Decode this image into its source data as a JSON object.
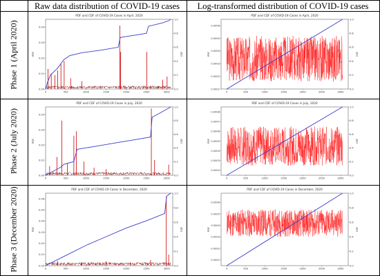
{
  "headers": {
    "col1": "Raw data distribution of COVID-19 cases",
    "col2": "Log-transformed distribution of COVID-19 cases"
  },
  "rows": [
    {
      "label": "Phase 1 (April 2020)"
    },
    {
      "label": "Phase 2 (July 2020)"
    },
    {
      "label": "Phase 3 (December 2020)"
    }
  ],
  "colors": {
    "pdf": "#cc0000",
    "pdf_dark": "#8b1a1a",
    "pdf_bright": "#ff1a1a",
    "cdf": "#3b3bcc"
  },
  "chart_data": [
    {
      "type": "line",
      "title": "PDF and CDF of COVID-19 Cases in April, 2020",
      "ylabel": "PDF",
      "y2label": "CDF",
      "x_ticks": [
        "0",
        "500",
        "1000",
        "1500",
        "2000",
        "2500",
        "3000"
      ],
      "xlim": [
        0,
        3150
      ],
      "y_ticks": [
        "0.00",
        "0.01",
        "0.02",
        "0.03",
        "0.04"
      ],
      "ylim": [
        0,
        0.045
      ],
      "y2_ticks": [
        "0.0",
        "0.2",
        "0.4",
        "0.6",
        "0.8",
        "1.0"
      ],
      "y2lim": [
        0,
        1.0
      ],
      "pdf_spikes": [
        [
          60,
          0.013
        ],
        [
          140,
          0.01
        ],
        [
          230,
          0.009
        ],
        [
          300,
          0.012
        ],
        [
          380,
          0.016
        ],
        [
          460,
          0.018
        ],
        [
          620,
          0.007
        ],
        [
          900,
          0.005
        ],
        [
          1840,
          0.041
        ],
        [
          1860,
          0.024
        ],
        [
          2510,
          0.024
        ],
        [
          2900,
          0.006
        ],
        [
          3010,
          0.008
        ]
      ],
      "cdf": [
        [
          0,
          0.0
        ],
        [
          50,
          0.1
        ],
        [
          120,
          0.2
        ],
        [
          300,
          0.3
        ],
        [
          450,
          0.42
        ],
        [
          600,
          0.48
        ],
        [
          900,
          0.52
        ],
        [
          1400,
          0.56
        ],
        [
          1800,
          0.6
        ],
        [
          1850,
          0.74
        ],
        [
          2300,
          0.78
        ],
        [
          2500,
          0.8
        ],
        [
          2550,
          0.9
        ],
        [
          2900,
          0.95
        ],
        [
          3050,
          0.98
        ],
        [
          3100,
          1.0
        ]
      ],
      "mode": "raw"
    },
    {
      "type": "line",
      "title": "PDF and CDF of COVID-19 Cases in April, 2020",
      "ylabel": "PDF",
      "y2label": "CDF",
      "x_ticks": [
        "0",
        "500",
        "1000",
        "1500",
        "2000",
        "2500",
        "3000"
      ],
      "xlim": [
        -150,
        3200
      ],
      "y_ticks": [
        "0.0001",
        "0.0002",
        "0.0003",
        "0.0004",
        "0.0005",
        "0.0006"
      ],
      "ylim": [
        0.0001,
        0.00065
      ],
      "y2_ticks": [
        "0.0",
        "0.2",
        "0.4",
        "0.6",
        "0.8",
        "1.0"
      ],
      "y2lim": [
        0,
        1.0
      ],
      "cdf": [
        [
          0,
          0.0
        ],
        [
          3050,
          1.0
        ]
      ],
      "mode": "log",
      "noise": {
        "base": 0.00034,
        "amp": 0.00018,
        "seed": 3
      }
    },
    {
      "type": "line",
      "title": "PDF and CDF of COVID-19 Cases in July, 2020",
      "ylabel": "PDF",
      "y2label": "CDF",
      "x_ticks": [
        "0",
        "500",
        "1000",
        "1500",
        "2000",
        "2500",
        "3000"
      ],
      "xlim": [
        0,
        3150
      ],
      "y_ticks": [
        "0.00",
        "0.01",
        "0.02",
        "0.03",
        "0.04"
      ],
      "ylim": [
        0,
        0.045
      ],
      "y2_ticks": [
        "0.0",
        "0.2",
        "0.4",
        "0.6",
        "0.8",
        "1.0"
      ],
      "y2lim": [
        0,
        1.0
      ],
      "pdf_spikes": [
        [
          100,
          0.006
        ],
        [
          280,
          0.012
        ],
        [
          400,
          0.036
        ],
        [
          540,
          0.008
        ],
        [
          700,
          0.026
        ],
        [
          760,
          0.029
        ],
        [
          950,
          0.009
        ],
        [
          1200,
          0.005
        ],
        [
          1500,
          0.004
        ],
        [
          2620,
          0.044
        ],
        [
          2700,
          0.01
        ],
        [
          3050,
          0.007
        ]
      ],
      "cdf": [
        [
          0,
          0.0
        ],
        [
          380,
          0.12
        ],
        [
          450,
          0.16
        ],
        [
          700,
          0.2
        ],
        [
          780,
          0.38
        ],
        [
          1200,
          0.42
        ],
        [
          1800,
          0.48
        ],
        [
          2200,
          0.52
        ],
        [
          2600,
          0.56
        ],
        [
          2640,
          0.85
        ],
        [
          2800,
          0.9
        ],
        [
          3100,
          1.0
        ]
      ],
      "mode": "raw"
    },
    {
      "type": "line",
      "title": "PDF and CDF of COVID-19 Cases in July, 2020",
      "ylabel": "PDF",
      "y2label": "CDF",
      "x_ticks": [
        "0",
        "500",
        "1000",
        "1500",
        "2000",
        "2500",
        "3000"
      ],
      "xlim": [
        -150,
        3200
      ],
      "y_ticks": [
        "0.0002",
        "0.0003",
        "0.0004",
        "0.0005",
        "0.0006",
        "0.0007",
        "0.0008"
      ],
      "ylim": [
        0.00015,
        0.00085
      ],
      "y2_ticks": [
        "0.0",
        "0.2",
        "0.4",
        "0.6",
        "0.8",
        "1.0"
      ],
      "y2lim": [
        0,
        1.0
      ],
      "cdf": [
        [
          0,
          0.0
        ],
        [
          3050,
          1.0
        ]
      ],
      "mode": "log",
      "noise": {
        "base": 0.00045,
        "amp": 0.0002,
        "seed": 7
      }
    },
    {
      "type": "line",
      "title": "PDF and CDF of COVID-19 Cases in December, 2020",
      "ylabel": "PDF",
      "y2label": "CDF",
      "x_ticks": [
        "0",
        "500",
        "1000",
        "1500",
        "2000",
        "2500",
        "3000"
      ],
      "xlim": [
        0,
        3150
      ],
      "y_ticks": [
        "0.00",
        "0.01",
        "0.02",
        "0.03",
        "0.04",
        "0.05",
        "0.06"
      ],
      "ylim": [
        0,
        0.065
      ],
      "y2_ticks": [
        "0.0",
        "0.2",
        "0.4",
        "0.6",
        "0.8",
        "1.0"
      ],
      "y2lim": [
        0,
        1.0
      ],
      "pdf_spikes": [
        [
          300,
          0.004
        ],
        [
          900,
          0.003
        ],
        [
          1500,
          0.004
        ],
        [
          2100,
          0.003
        ],
        [
          2600,
          0.005
        ],
        [
          2990,
          0.062
        ],
        [
          3050,
          0.01
        ]
      ],
      "cdf": [
        [
          0,
          0.0
        ],
        [
          500,
          0.14
        ],
        [
          1000,
          0.28
        ],
        [
          1500,
          0.4
        ],
        [
          2000,
          0.52
        ],
        [
          2500,
          0.62
        ],
        [
          2950,
          0.72
        ],
        [
          3000,
          0.96
        ],
        [
          3100,
          1.0
        ]
      ],
      "mode": "raw"
    },
    {
      "type": "line",
      "title": "PDF and CDF of COVID-19 Cases in December, 2020",
      "ylabel": "PDF",
      "y2label": "CDF",
      "x_ticks": [
        "0",
        "500",
        "1000",
        "1500",
        "2000",
        "2500",
        "3000"
      ],
      "xlim": [
        -150,
        3200
      ],
      "y_ticks": [
        "0.0001",
        "0.0002",
        "0.0003",
        "0.0004",
        "0.0005",
        "0.0006"
      ],
      "ylim": [
        5e-05,
        0.00068
      ],
      "y2_ticks": [
        "0.0",
        "0.2",
        "0.4",
        "0.6",
        "0.8",
        "1.0"
      ],
      "y2lim": [
        0,
        1.0
      ],
      "cdf": [
        [
          0,
          0.0
        ],
        [
          3050,
          1.0
        ]
      ],
      "mode": "log",
      "noise": {
        "base": 0.00042,
        "amp": 0.00012,
        "seed": 11
      }
    }
  ]
}
